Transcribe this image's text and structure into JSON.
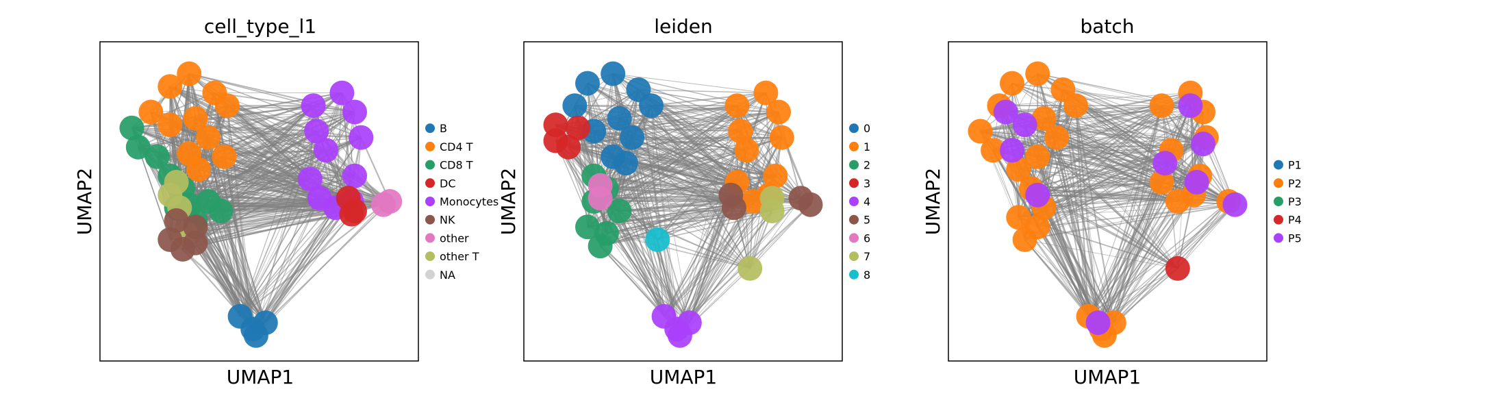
{
  "chart_data": [
    {
      "type": "scatter",
      "title": "cell_type_l1",
      "xlabel": "UMAP1",
      "ylabel": "UMAP2",
      "grid": false,
      "ticks": false,
      "legend_placement": "right",
      "legend": [
        {
          "label": "B",
          "color": "#1f77b4"
        },
        {
          "label": "CD4 T",
          "color": "#ff7f0e"
        },
        {
          "label": "CD8 T",
          "color": "#279e68"
        },
        {
          "label": "DC",
          "color": "#d62728"
        },
        {
          "label": "Monocytes",
          "color": "#aa40fc"
        },
        {
          "label": "NK",
          "color": "#8c564b"
        },
        {
          "label": "other",
          "color": "#e377c2"
        },
        {
          "label": "other T",
          "color": "#b5bd61"
        },
        {
          "label": "NA",
          "color": "#d3d3d3"
        }
      ],
      "clusters": [
        {
          "label": "CD4 T",
          "color": "#ff7f0e",
          "points": [
            [
              0.22,
              0.14
            ],
            [
              0.16,
              0.22
            ],
            [
              0.28,
              0.1
            ],
            [
              0.36,
              0.16
            ],
            [
              0.4,
              0.2
            ],
            [
              0.3,
              0.24
            ],
            [
              0.22,
              0.26
            ],
            [
              0.34,
              0.3
            ],
            [
              0.28,
              0.35
            ],
            [
              0.31,
              0.4
            ],
            [
              0.39,
              0.36
            ]
          ]
        },
        {
          "label": "CD8 T",
          "color": "#279e68",
          "points": [
            [
              0.1,
              0.27
            ],
            [
              0.12,
              0.33
            ],
            [
              0.18,
              0.36
            ],
            [
              0.22,
              0.42
            ],
            [
              0.26,
              0.46
            ],
            [
              0.28,
              0.51
            ],
            [
              0.34,
              0.5
            ],
            [
              0.38,
              0.53
            ],
            [
              0.3,
              0.56
            ],
            [
              0.24,
              0.52
            ]
          ]
        },
        {
          "label": "other T",
          "color": "#b5bd61",
          "points": [
            [
              0.24,
              0.44
            ],
            [
              0.22,
              0.48
            ],
            [
              0.25,
              0.52
            ],
            [
              0.27,
              0.6
            ]
          ]
        },
        {
          "label": "NK",
          "color": "#8c564b",
          "points": [
            [
              0.24,
              0.56
            ],
            [
              0.3,
              0.58
            ],
            [
              0.3,
              0.63
            ],
            [
              0.26,
              0.65
            ],
            [
              0.22,
              0.62
            ]
          ]
        },
        {
          "label": "Monocytes",
          "color": "#aa40fc",
          "points": [
            [
              0.67,
              0.2
            ],
            [
              0.76,
              0.16
            ],
            [
              0.8,
              0.22
            ],
            [
              0.82,
              0.3
            ],
            [
              0.8,
              0.42
            ],
            [
              0.79,
              0.5
            ],
            [
              0.74,
              0.52
            ],
            [
              0.69,
              0.49
            ],
            [
              0.66,
              0.43
            ],
            [
              0.71,
              0.34
            ],
            [
              0.68,
              0.28
            ]
          ]
        },
        {
          "label": "DC",
          "color": "#d62728",
          "points": [
            [
              0.78,
              0.49
            ],
            [
              0.8,
              0.53
            ],
            [
              0.79,
              0.54
            ]
          ]
        },
        {
          "label": "other",
          "color": "#e377c2",
          "points": [
            [
              0.89,
              0.51
            ],
            [
              0.91,
              0.5
            ]
          ]
        },
        {
          "label": "B",
          "color": "#1f77b4",
          "points": [
            [
              0.44,
              0.86
            ],
            [
              0.48,
              0.9
            ],
            [
              0.52,
              0.88
            ],
            [
              0.49,
              0.92
            ]
          ]
        }
      ]
    },
    {
      "type": "scatter",
      "title": "leiden",
      "xlabel": "UMAP1",
      "ylabel": "UMAP2",
      "grid": false,
      "ticks": false,
      "legend_placement": "right",
      "legend": [
        {
          "label": "0",
          "color": "#1f77b4"
        },
        {
          "label": "1",
          "color": "#ff7f0e"
        },
        {
          "label": "2",
          "color": "#279e68"
        },
        {
          "label": "3",
          "color": "#d62728"
        },
        {
          "label": "4",
          "color": "#aa40fc"
        },
        {
          "label": "5",
          "color": "#8c564b"
        },
        {
          "label": "6",
          "color": "#e377c2"
        },
        {
          "label": "7",
          "color": "#b5bd61"
        },
        {
          "label": "8",
          "color": "#17becf"
        }
      ],
      "clusters": [
        {
          "label": "0",
          "color": "#1f77b4",
          "points": [
            [
              0.2,
              0.13
            ],
            [
              0.16,
              0.2
            ],
            [
              0.28,
              0.1
            ],
            [
              0.36,
              0.15
            ],
            [
              0.4,
              0.2
            ],
            [
              0.3,
              0.24
            ],
            [
              0.22,
              0.28
            ],
            [
              0.34,
              0.3
            ],
            [
              0.28,
              0.36
            ],
            [
              0.32,
              0.38
            ]
          ]
        },
        {
          "label": "3",
          "color": "#d62728",
          "points": [
            [
              0.1,
              0.26
            ],
            [
              0.1,
              0.31
            ],
            [
              0.14,
              0.33
            ],
            [
              0.17,
              0.27
            ]
          ]
        },
        {
          "label": "2",
          "color": "#279e68",
          "points": [
            [
              0.22,
              0.42
            ],
            [
              0.26,
              0.46
            ],
            [
              0.3,
              0.53
            ],
            [
              0.26,
              0.6
            ],
            [
              0.24,
              0.64
            ],
            [
              0.2,
              0.58
            ],
            [
              0.22,
              0.5
            ]
          ]
        },
        {
          "label": "6",
          "color": "#e377c2",
          "points": [
            [
              0.24,
              0.45
            ],
            [
              0.24,
              0.49
            ]
          ]
        },
        {
          "label": "8",
          "color": "#17becf",
          "points": [
            [
              0.42,
              0.62
            ]
          ]
        },
        {
          "label": "1",
          "color": "#ff7f0e",
          "points": [
            [
              0.67,
              0.2
            ],
            [
              0.76,
              0.16
            ],
            [
              0.8,
              0.22
            ],
            [
              0.81,
              0.3
            ],
            [
              0.79,
              0.42
            ],
            [
              0.77,
              0.48
            ],
            [
              0.72,
              0.5
            ],
            [
              0.67,
              0.44
            ],
            [
              0.7,
              0.34
            ],
            [
              0.68,
              0.28
            ]
          ]
        },
        {
          "label": "5",
          "color": "#8c564b",
          "points": [
            [
              0.65,
              0.48
            ],
            [
              0.66,
              0.52
            ],
            [
              0.87,
              0.49
            ],
            [
              0.9,
              0.51
            ]
          ]
        },
        {
          "label": "7",
          "color": "#b5bd61",
          "points": [
            [
              0.78,
              0.49
            ],
            [
              0.78,
              0.53
            ],
            [
              0.71,
              0.71
            ]
          ]
        },
        {
          "label": "4",
          "color": "#aa40fc",
          "points": [
            [
              0.44,
              0.86
            ],
            [
              0.48,
              0.9
            ],
            [
              0.52,
              0.88
            ],
            [
              0.49,
              0.92
            ]
          ]
        }
      ]
    },
    {
      "type": "scatter",
      "title": "batch",
      "xlabel": "UMAP1",
      "ylabel": "UMAP2",
      "grid": false,
      "ticks": false,
      "legend_placement": "right",
      "legend": [
        {
          "label": "P1",
          "color": "#1f77b4"
        },
        {
          "label": "P2",
          "color": "#ff7f0e"
        },
        {
          "label": "P3",
          "color": "#279e68"
        },
        {
          "label": "P4",
          "color": "#d62728"
        },
        {
          "label": "P5",
          "color": "#aa40fc"
        }
      ],
      "clusters": [
        {
          "label": "P2",
          "color": "#ff7f0e",
          "points": [
            [
              0.2,
              0.13
            ],
            [
              0.16,
              0.2
            ],
            [
              0.28,
              0.1
            ],
            [
              0.36,
              0.15
            ],
            [
              0.4,
              0.2
            ],
            [
              0.3,
              0.24
            ],
            [
              0.1,
              0.28
            ],
            [
              0.14,
              0.34
            ],
            [
              0.22,
              0.4
            ],
            [
              0.26,
              0.46
            ],
            [
              0.3,
              0.52
            ],
            [
              0.28,
              0.58
            ],
            [
              0.24,
              0.62
            ],
            [
              0.22,
              0.55
            ],
            [
              0.34,
              0.3
            ],
            [
              0.28,
              0.36
            ],
            [
              0.67,
              0.2
            ],
            [
              0.76,
              0.16
            ],
            [
              0.8,
              0.22
            ],
            [
              0.81,
              0.3
            ],
            [
              0.79,
              0.42
            ],
            [
              0.77,
              0.48
            ],
            [
              0.72,
              0.5
            ],
            [
              0.67,
              0.44
            ],
            [
              0.7,
              0.34
            ],
            [
              0.88,
              0.5
            ],
            [
              0.44,
              0.86
            ],
            [
              0.48,
              0.9
            ],
            [
              0.52,
              0.88
            ],
            [
              0.49,
              0.92
            ]
          ]
        },
        {
          "label": "P5",
          "color": "#aa40fc",
          "points": [
            [
              0.18,
              0.22
            ],
            [
              0.24,
              0.26
            ],
            [
              0.2,
              0.34
            ],
            [
              0.28,
              0.48
            ],
            [
              0.76,
              0.2
            ],
            [
              0.8,
              0.32
            ],
            [
              0.78,
              0.44
            ],
            [
              0.68,
              0.38
            ],
            [
              0.9,
              0.51
            ],
            [
              0.47,
              0.88
            ]
          ]
        },
        {
          "label": "P4",
          "color": "#d62728",
          "points": [
            [
              0.72,
              0.71
            ]
          ]
        }
      ]
    }
  ]
}
